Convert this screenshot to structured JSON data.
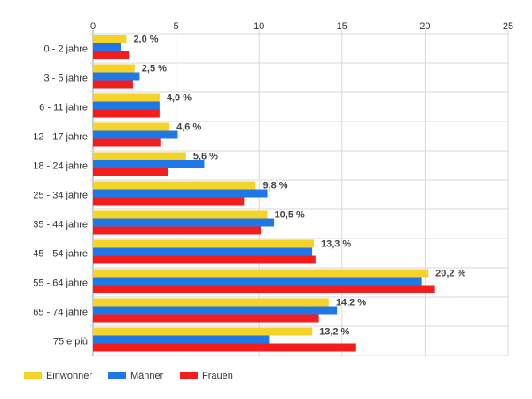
{
  "chart_data": {
    "type": "bar",
    "orientation": "horizontal",
    "categories": [
      "0 - 2 jahre",
      "3 - 5 jahre",
      "6 - 11 jahre",
      "12 - 17 jahre",
      "18 - 24 jahre",
      "25 - 34 jahre",
      "35 - 44 jahre",
      "45 - 54 jahre",
      "55 - 64 jahre",
      "65 - 74 jahre",
      "75 e più"
    ],
    "series": [
      {
        "name": "Einwohner",
        "color": "#f5d328",
        "values": [
          2.0,
          2.5,
          4.0,
          4.6,
          5.6,
          9.8,
          10.5,
          13.3,
          20.2,
          14.2,
          13.2
        ]
      },
      {
        "name": "Männer",
        "color": "#1f78e6",
        "values": [
          1.7,
          2.8,
          4.0,
          5.1,
          6.7,
          10.5,
          10.9,
          13.2,
          19.8,
          14.7,
          10.6
        ]
      },
      {
        "name": "Frauen",
        "color": "#f41d1d",
        "values": [
          2.2,
          2.4,
          4.0,
          4.1,
          4.5,
          9.1,
          10.1,
          13.4,
          20.6,
          13.6,
          15.8
        ]
      }
    ],
    "data_labels": [
      "2,0 %",
      "2,5 %",
      "4,0 %",
      "4,6 %",
      "5,6 %",
      "9,8 %",
      "10,5 %",
      "13,3 %",
      "20,2 %",
      "14,2 %",
      "13,2 %"
    ],
    "xlim": [
      0,
      25
    ],
    "xticks": [
      0,
      5,
      10,
      15,
      20,
      25
    ],
    "x_axis_position": "top",
    "grid": true,
    "legend": "bottom-left",
    "title": "",
    "xlabel": "",
    "ylabel": ""
  }
}
